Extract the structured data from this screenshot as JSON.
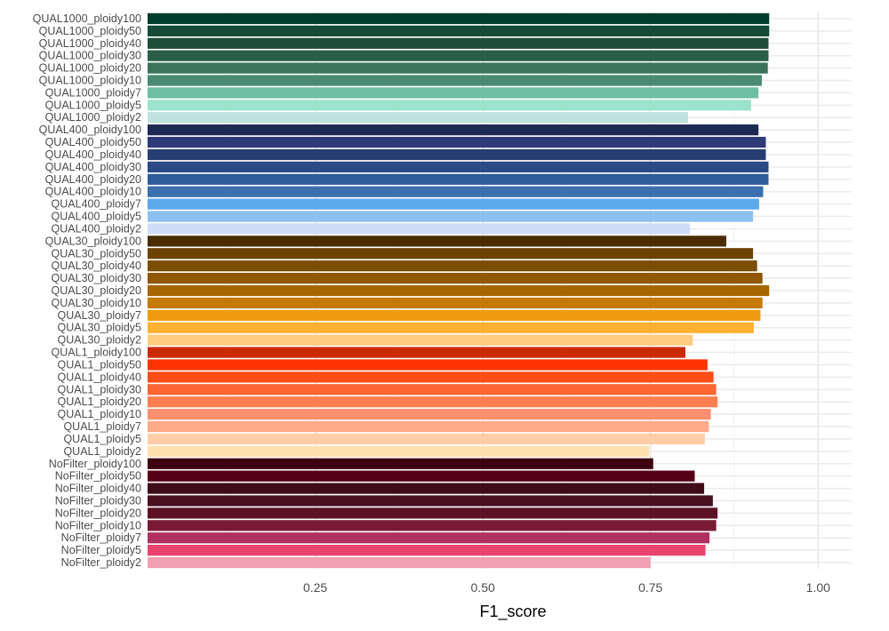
{
  "chart_data": {
    "type": "bar",
    "orientation": "horizontal",
    "xlabel": "F1_score",
    "ylabel": "",
    "xlim": [
      0.0,
      1.05
    ],
    "xticks": [
      0.25,
      0.5,
      0.75,
      1.0
    ],
    "xtick_labels": [
      "0.25",
      "0.50",
      "0.75",
      "1.00"
    ],
    "grid": true,
    "legend": "none",
    "categories": [
      "QUAL1000_ploidy100",
      "QUAL1000_ploidy50",
      "QUAL1000_ploidy40",
      "QUAL1000_ploidy30",
      "QUAL1000_ploidy20",
      "QUAL1000_ploidy10",
      "QUAL1000_ploidy7",
      "QUAL1000_ploidy5",
      "QUAL1000_ploidy2",
      "QUAL400_ploidy100",
      "QUAL400_ploidy50",
      "QUAL400_ploidy40",
      "QUAL400_ploidy30",
      "QUAL400_ploidy20",
      "QUAL400_ploidy10",
      "QUAL400_ploidy7",
      "QUAL400_ploidy5",
      "QUAL400_ploidy2",
      "QUAL30_ploidy100",
      "QUAL30_ploidy50",
      "QUAL30_ploidy40",
      "QUAL30_ploidy30",
      "QUAL30_ploidy20",
      "QUAL30_ploidy10",
      "QUAL30_ploidy7",
      "QUAL30_ploidy5",
      "QUAL30_ploidy2",
      "QUAL1_ploidy100",
      "QUAL1_ploidy50",
      "QUAL1_ploidy40",
      "QUAL1_ploidy30",
      "QUAL1_ploidy20",
      "QUAL1_ploidy10",
      "QUAL1_ploidy7",
      "QUAL1_ploidy5",
      "QUAL1_ploidy2",
      "NoFilter_ploidy100",
      "NoFilter_ploidy50",
      "NoFilter_ploidy40",
      "NoFilter_ploidy30",
      "NoFilter_ploidy20",
      "NoFilter_ploidy10",
      "NoFilter_ploidy7",
      "NoFilter_ploidy5",
      "NoFilter_ploidy2"
    ],
    "values": [
      0.927,
      0.927,
      0.926,
      0.926,
      0.925,
      0.916,
      0.911,
      0.9,
      0.806,
      0.911,
      0.922,
      0.922,
      0.926,
      0.926,
      0.918,
      0.912,
      0.903,
      0.809,
      0.863,
      0.903,
      0.909,
      0.917,
      0.927,
      0.917,
      0.914,
      0.904,
      0.813,
      0.802,
      0.835,
      0.844,
      0.848,
      0.85,
      0.84,
      0.837,
      0.831,
      0.748,
      0.754,
      0.816,
      0.83,
      0.843,
      0.85,
      0.848,
      0.838,
      0.832,
      0.75
    ],
    "colors": [
      "#003d2c",
      "#154a37",
      "#1e4d39",
      "#2a5e46",
      "#3b735a",
      "#4a8a72",
      "#6dbfa3",
      "#9be3cc",
      "#bfe3dd",
      "#1d2a52",
      "#2f3a78",
      "#283e73",
      "#2b4a86",
      "#2f5c9a",
      "#3b6fad",
      "#5ea9eb",
      "#8dc0f2",
      "#cfdcf8",
      "#4a2c00",
      "#6b4200",
      "#7a4d00",
      "#8f5700",
      "#a66600",
      "#c47a0a",
      "#f09a12",
      "#ffb030",
      "#ffcc80",
      "#cc2a00",
      "#ff3300",
      "#ff4d1a",
      "#ff6633",
      "#ff7f50",
      "#ff9070",
      "#ffaa88",
      "#ffcca8",
      "#ffe0b0",
      "#3d0010",
      "#560016",
      "#3f0d18",
      "#4a1020",
      "#5c1224",
      "#7a1a36",
      "#b03060",
      "#e8446e",
      "#f0a0b0"
    ]
  }
}
